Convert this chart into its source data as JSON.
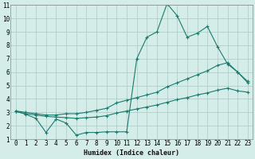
{
  "xlabel": "Humidex (Indice chaleur)",
  "xlim": [
    -0.5,
    23.5
  ],
  "ylim": [
    1,
    11
  ],
  "xticks": [
    0,
    1,
    2,
    3,
    4,
    5,
    6,
    7,
    8,
    9,
    10,
    11,
    12,
    13,
    14,
    15,
    16,
    17,
    18,
    19,
    20,
    21,
    22,
    23
  ],
  "yticks": [
    1,
    2,
    3,
    4,
    5,
    6,
    7,
    8,
    9,
    10,
    11
  ],
  "bg_color": "#d4ede9",
  "line_color": "#1a7a6e",
  "grid_color": "#aac8c4",
  "line1_x": [
    0,
    1,
    2,
    3,
    4,
    5,
    6,
    7,
    8,
    9,
    10,
    11,
    12,
    13,
    14,
    15,
    16,
    17,
    18,
    19,
    20,
    21,
    22,
    23
  ],
  "line1_y": [
    3.1,
    2.85,
    2.55,
    1.5,
    2.5,
    2.2,
    1.3,
    1.5,
    1.5,
    1.55,
    1.55,
    1.55,
    7.0,
    8.6,
    9.0,
    11.1,
    10.2,
    8.6,
    8.9,
    9.4,
    7.9,
    6.6,
    6.0,
    5.3
  ],
  "line2_x": [
    0,
    1,
    2,
    3,
    4,
    5,
    6,
    7,
    8,
    9,
    10,
    11,
    12,
    13,
    14,
    15,
    16,
    17,
    18,
    19,
    20,
    21,
    22,
    23
  ],
  "line2_y": [
    3.1,
    3.0,
    2.9,
    2.8,
    2.8,
    2.9,
    2.9,
    3.0,
    3.15,
    3.3,
    3.7,
    3.9,
    4.1,
    4.3,
    4.5,
    4.9,
    5.2,
    5.5,
    5.8,
    6.1,
    6.5,
    6.7,
    6.0,
    5.2
  ],
  "line3_x": [
    0,
    1,
    2,
    3,
    4,
    5,
    6,
    7,
    8,
    9,
    10,
    11,
    12,
    13,
    14,
    15,
    16,
    17,
    18,
    19,
    20,
    21,
    22,
    23
  ],
  "line3_y": [
    3.05,
    2.9,
    2.8,
    2.7,
    2.65,
    2.6,
    2.55,
    2.6,
    2.65,
    2.75,
    2.95,
    3.1,
    3.25,
    3.4,
    3.55,
    3.75,
    3.95,
    4.1,
    4.3,
    4.45,
    4.65,
    4.8,
    4.6,
    4.5
  ]
}
